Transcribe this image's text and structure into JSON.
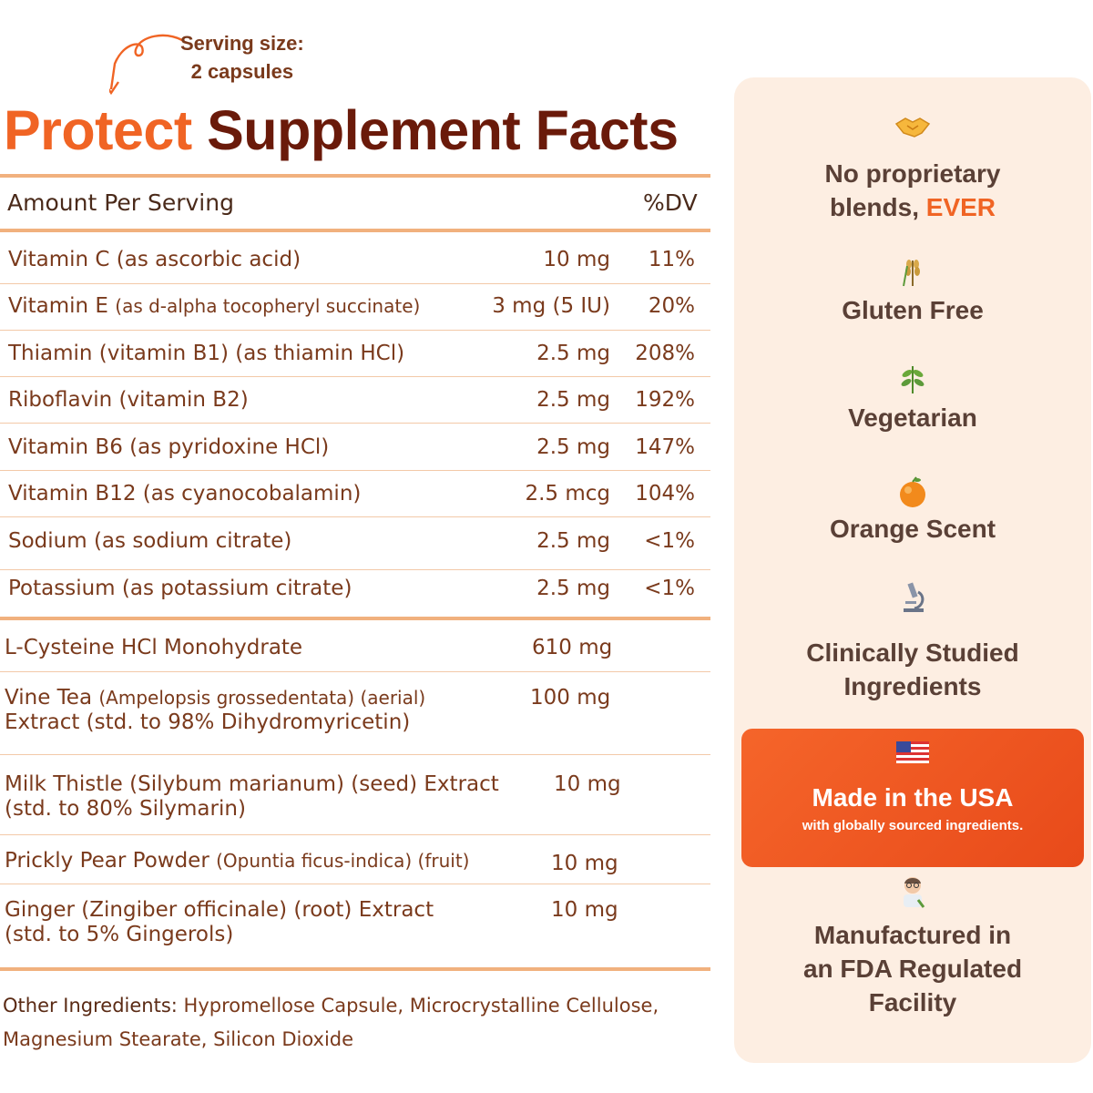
{
  "serving": {
    "line1": "Serving size:",
    "line2": "2 capsules"
  },
  "title": {
    "part1": "Protect",
    "part2": "Supplement Facts"
  },
  "header": {
    "amount": "Amount Per Serving",
    "dv": "%DV"
  },
  "vitamins": [
    {
      "name": "Vitamin C (as ascorbic acid)",
      "sub": "",
      "amount": "10 mg",
      "dv": "11%"
    },
    {
      "name": "Vitamin E ",
      "sub": "(as d-alpha tocopheryl succinate)",
      "amount": "3 mg (5 IU)",
      "dv": "20%"
    },
    {
      "name": "Thiamin (vitamin B1) (as thiamin HCl)",
      "sub": "",
      "amount": "2.5 mg",
      "dv": "208%"
    },
    {
      "name": "Riboflavin (vitamin B2)",
      "sub": "",
      "amount": "2.5 mg",
      "dv": "192%"
    },
    {
      "name": "Vitamin B6 (as pyridoxine HCl)",
      "sub": "",
      "amount": "2.5 mg",
      "dv": "147%"
    },
    {
      "name": "Vitamin B12 (as cyanocobalamin)",
      "sub": "",
      "amount": "2.5 mcg",
      "dv": "104%"
    },
    {
      "name": "Sodium (as sodium citrate)",
      "sub": "",
      "amount": "2.5 mg",
      "dv": "<1%"
    },
    {
      "name": "Potassium (as potassium citrate)",
      "sub": "",
      "amount": "2.5 mg",
      "dv": "<1%"
    }
  ],
  "extracts": [
    {
      "name": "L-Cysteine HCl Monohydrate",
      "sub": "",
      "rest": "",
      "amount": "610 mg"
    },
    {
      "name": "Vine Tea ",
      "sub": "(Ampelopsis grossedentata) (aerial)",
      "rest": "Extract (std. to 98% Dihydromyricetin)",
      "amount": "100 mg"
    },
    {
      "name": "Milk Thistle (Silybum marianum) (seed) Extract",
      "sub": "",
      "rest": "(std. to 80% Silymarin)",
      "amount": "10 mg"
    },
    {
      "name": "Prickly Pear Powder ",
      "sub": "(Opuntia ficus-indica) (fruit)",
      "rest": "",
      "amount": "10 mg"
    },
    {
      "name": "Ginger (Zingiber officinale) (root) Extract",
      "sub": "",
      "rest": "(std. to 5% Gingerols)",
      "amount": "10 mg"
    }
  ],
  "other": {
    "label": "Other Ingredients:",
    "text": " Hypromellose Capsule, Microcrystalline Cellulose, Magnesium Stearate, Silicon Dioxide"
  },
  "features": {
    "proprietary": {
      "icon": "handshake-icon",
      "line1": "No proprietary",
      "line2a": "blends, ",
      "line2b": "EVER"
    },
    "gluten": {
      "icon": "wheat-icon",
      "label": "Gluten Free"
    },
    "vegetarian": {
      "icon": "herb-icon",
      "label": "Vegetarian"
    },
    "orange": {
      "icon": "orange-icon",
      "label": "Orange Scent"
    },
    "clinical": {
      "icon": "microscope-icon",
      "line1": "Clinically Studied",
      "line2": "Ingredients"
    },
    "usa": {
      "icon": "us-flag-icon",
      "title": "Made in the USA",
      "subtitle": "with globally sourced ingredients."
    },
    "fda": {
      "icon": "scientist-icon",
      "line1": "Manufactured in",
      "line2": "an FDA Regulated",
      "line3": "Facility"
    }
  },
  "colors": {
    "accent": "#f06424",
    "dark_title": "#6a1a0a",
    "text": "#7a3a1c",
    "rule": "#f1b17e",
    "panel": "#fdeee2"
  }
}
